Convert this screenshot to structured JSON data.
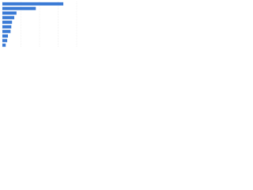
{
  "chart_data": {
    "type": "bar",
    "orientation": "horizontal",
    "categories": [
      null,
      null,
      null,
      null,
      null,
      null,
      null,
      null,
      null,
      null
    ],
    "values": [
      82,
      45,
      19,
      16,
      13,
      12,
      11,
      7.5,
      6.5,
      4.5
    ],
    "color": "#3a7ad5",
    "xlim": [
      0,
      100
    ],
    "xticks": [
      0,
      25,
      50,
      75,
      100
    ],
    "grid": true
  }
}
